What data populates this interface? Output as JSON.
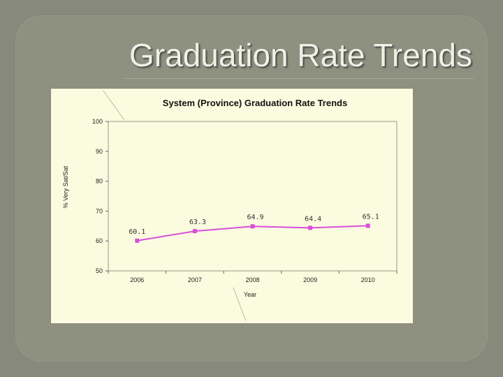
{
  "slide": {
    "title": "Graduation Rate Trends"
  },
  "chart_data": {
    "type": "line",
    "title": "System (Province) Graduation Rate Trends",
    "xlabel": "Year",
    "ylabel": "% Very Sat/Sat",
    "categories": [
      "2006",
      "2007",
      "2008",
      "2009",
      "2010"
    ],
    "series": [
      {
        "values": [
          60.1,
          63.3,
          64.9,
          64.4,
          65.1
        ],
        "data_labels": [
          "60.1",
          "63.3",
          "64.9",
          "64.4",
          "65.1"
        ],
        "color": "#d94fd9"
      }
    ],
    "ylim": [
      50,
      100
    ],
    "yticks": [
      50,
      60,
      70,
      80,
      90,
      100
    ],
    "grid": false,
    "legend": "none",
    "plot_background": "#fbfbe0"
  }
}
